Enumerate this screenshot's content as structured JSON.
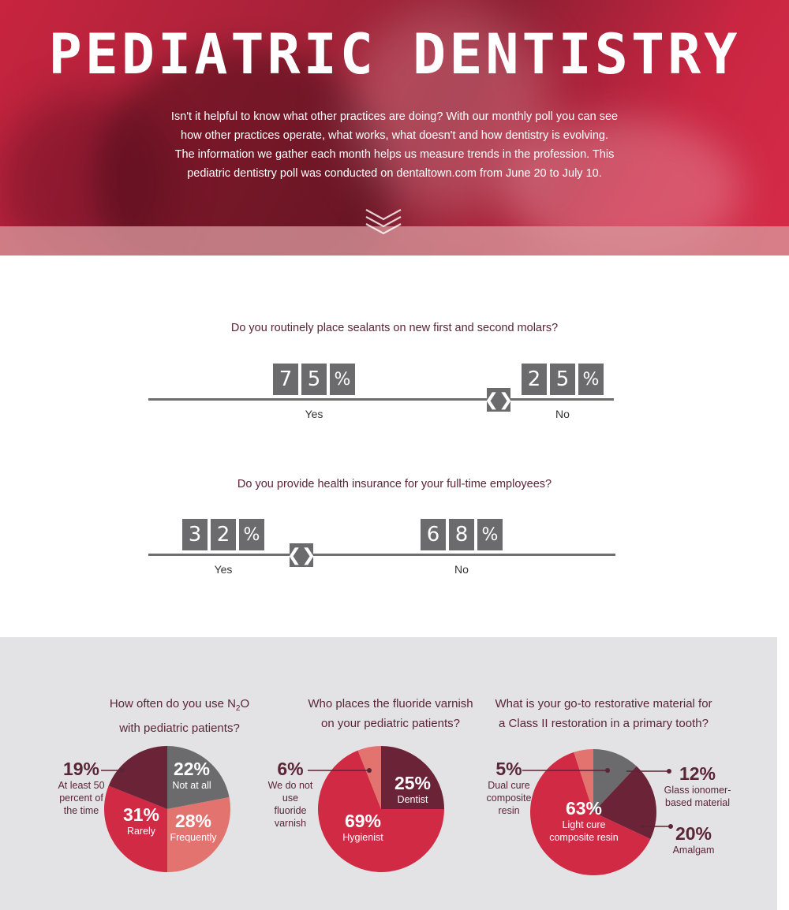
{
  "hero": {
    "title": "PEDIATRIC DENTISTRY",
    "intro": "Isn't it helpful to know what other practices are doing? With our monthly poll you can see how other practices operate, what works, what doesn't and how dentistry is evolving. The information we gather each month helps us measure trends in the profession. This pediatric dentistry poll was conducted on dentaltown.com from June 20 to July 10."
  },
  "colors": {
    "crimson": "#d12a45",
    "wine": "#6b2338",
    "salmon": "#e3736f",
    "gray": "#6b6b6d"
  },
  "chart_data": [
    {
      "type": "bar",
      "title": "Do you routinely place sealants on new first and second molars?",
      "categories": [
        "Yes",
        "No"
      ],
      "values": [
        75,
        25
      ],
      "digits": [
        [
          "7",
          "5",
          "%"
        ],
        [
          "2",
          "5",
          "%"
        ]
      ]
    },
    {
      "type": "bar",
      "title": "Do you provide health insurance for your full-time employees?",
      "categories": [
        "Yes",
        "No"
      ],
      "values": [
        32,
        68
      ],
      "digits": [
        [
          "3",
          "2",
          "%"
        ],
        [
          "6",
          "8",
          "%"
        ]
      ]
    },
    {
      "type": "pie",
      "title_line1": "How often do you use N",
      "title_sub": "2",
      "title_line1_end": "O",
      "title_line2": "with pediatric patients?",
      "slices": [
        {
          "label": "Not at all",
          "value": 22,
          "pct": "22%",
          "color": "#6b6b6d"
        },
        {
          "label": "Frequently",
          "value": 28,
          "pct": "28%",
          "color": "#e3736f"
        },
        {
          "label": "Rarely",
          "value": 31,
          "pct": "31%",
          "color": "#d12a45"
        },
        {
          "label_lines": [
            "At least 50",
            "percent of",
            "the time"
          ],
          "value": 19,
          "pct": "19%",
          "color": "#6b2338"
        }
      ]
    },
    {
      "type": "pie",
      "title_line1": "Who places the fluoride varnish",
      "title_line2": "on your pediatric patients?",
      "slices": [
        {
          "label": "Dentist",
          "value": 25,
          "pct": "25%",
          "color": "#6b2338"
        },
        {
          "label": "Hygienist",
          "value": 69,
          "pct": "69%",
          "color": "#d12a45"
        },
        {
          "label_lines": [
            "We do not",
            "use fluoride",
            "varnish"
          ],
          "value": 6,
          "pct": "6%",
          "color": "#e3736f"
        }
      ]
    },
    {
      "type": "pie",
      "title_line1": "What is your go-to restorative material for",
      "title_line2": "a Class II restoration in a primary tooth?",
      "slices": [
        {
          "label_lines": [
            "Glass ionomer-",
            "based material"
          ],
          "value": 12,
          "pct": "12%",
          "color": "#6b6b6d"
        },
        {
          "label": "Amalgam",
          "value": 20,
          "pct": "20%",
          "color": "#6b2338"
        },
        {
          "label_lines": [
            "Light cure",
            "composite resin"
          ],
          "value": 63,
          "pct": "63%",
          "color": "#d12a45"
        },
        {
          "label_lines": [
            "Dual cure",
            "composite",
            "resin"
          ],
          "value": 5,
          "pct": "5%",
          "color": "#e3736f"
        }
      ]
    }
  ]
}
